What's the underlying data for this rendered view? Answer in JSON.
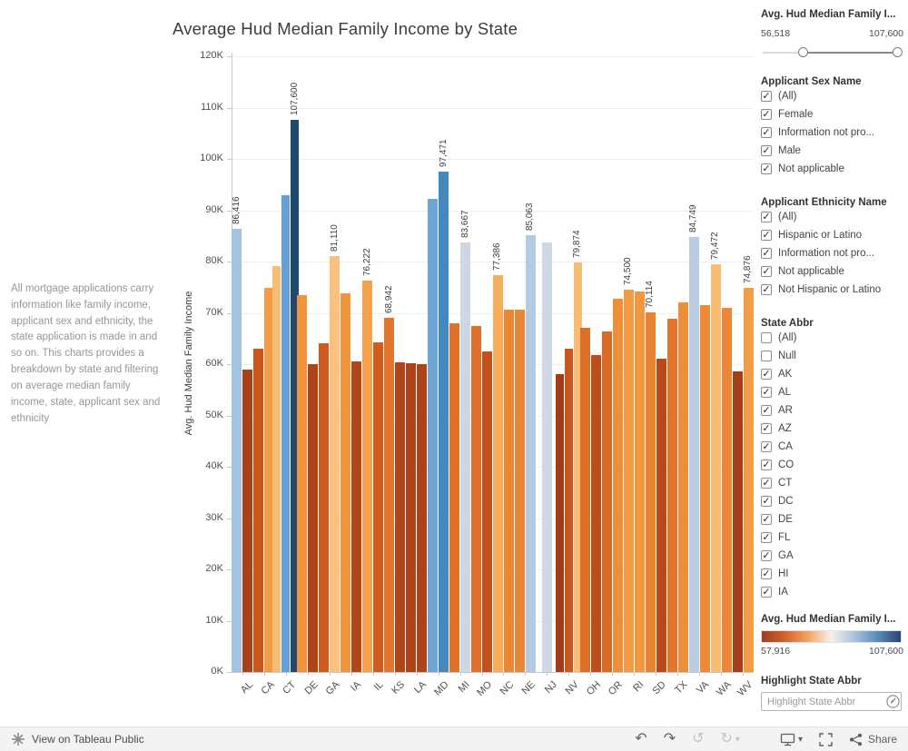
{
  "title": "Average Hud Median Family Income by State",
  "description": "All mortgage applications carry information like family income, applicant sex and ethnicity, the state application is made in and so on. This charts provides a breakdown by state and filtering on average median family income, state, applicant sex and ethnicity",
  "chart_data": {
    "type": "bar",
    "title": "Average Hud Median Family Income by State",
    "xlabel": "",
    "ylabel": "Avg. Hud Median Family Income",
    "ylim": [
      0,
      120000
    ],
    "grid": true,
    "ytick_labels": [
      "0K",
      "10K",
      "20K",
      "30K",
      "40K",
      "50K",
      "60K",
      "70K",
      "80K",
      "90K",
      "100K",
      "110K",
      "120K"
    ],
    "color_encoding": "bar color encodes value on diverging orange-blue scale 57,916 to 107,600",
    "groups": [
      {
        "state": "AL",
        "bars": [
          {
            "value": 86416,
            "label": "86,416",
            "color": "#a3c3e0"
          },
          {
            "value": 59000,
            "color": "#a84019"
          }
        ]
      },
      {
        "state": "CA",
        "bars": [
          {
            "value": 63000,
            "color": "#c9571c"
          },
          {
            "value": 74800,
            "color": "#f29c45"
          }
        ]
      },
      {
        "state": "CT",
        "bars": [
          {
            "value": 79200,
            "color": "#f8bd75"
          },
          {
            "value": 93000,
            "color": "#66a0d2"
          },
          {
            "value": 107600,
            "label": "107,600",
            "color": "#21486f"
          }
        ]
      },
      {
        "state": "DE",
        "bars": [
          {
            "value": 73500,
            "color": "#f0933c"
          },
          {
            "value": 60000,
            "color": "#ad4419"
          }
        ]
      },
      {
        "state": "GA",
        "bars": [
          {
            "value": 64000,
            "color": "#cd5c1e"
          },
          {
            "value": 81110,
            "label": "81,110",
            "color": "#f9c17d"
          }
        ]
      },
      {
        "state": "IA",
        "bars": [
          {
            "value": 73800,
            "color": "#f0953d"
          },
          {
            "value": 60500,
            "color": "#b0471b"
          }
        ]
      },
      {
        "state": "IL",
        "bars": [
          {
            "value": 76222,
            "label": "76,222",
            "color": "#f4a24d"
          },
          {
            "value": 64200,
            "color": "#cd5c1e"
          }
        ]
      },
      {
        "state": "KS",
        "bars": [
          {
            "value": 68942,
            "label": "68,942",
            "color": "#e1762c"
          },
          {
            "value": 60300,
            "color": "#af461a"
          }
        ]
      },
      {
        "state": "LA",
        "bars": [
          {
            "value": 60200,
            "color": "#ae451a"
          },
          {
            "value": 60000,
            "color": "#ad4419"
          }
        ]
      },
      {
        "state": "MD",
        "bars": [
          {
            "value": 92200,
            "color": "#6fa5d4"
          },
          {
            "value": 97471,
            "label": "97,471",
            "color": "#4289c0"
          }
        ]
      },
      {
        "state": "MI",
        "bars": [
          {
            "value": 67900,
            "color": "#de722a"
          },
          {
            "value": 83667,
            "label": "83,667",
            "color": "#ccd8e3"
          }
        ]
      },
      {
        "state": "MO",
        "bars": [
          {
            "value": 67400,
            "color": "#dd702a"
          },
          {
            "value": 62400,
            "color": "#c2511c"
          }
        ]
      },
      {
        "state": "NC",
        "bars": [
          {
            "value": 77386,
            "label": "77,386",
            "color": "#f6ad5c"
          },
          {
            "value": 70700,
            "color": "#ea8634"
          }
        ]
      },
      {
        "state": "NE",
        "bars": [
          {
            "value": 70600,
            "color": "#ea8634"
          },
          {
            "value": 85063,
            "label": "85,063",
            "color": "#b3cbe2"
          }
        ]
      },
      {
        "state": "NJ",
        "bars": [
          {
            "value": 83700,
            "color": "#ccd8e3"
          }
        ]
      },
      {
        "state": "NV",
        "bars": [
          {
            "value": 58000,
            "color": "#a33b18"
          },
          {
            "value": 63000,
            "color": "#c9571c"
          },
          {
            "value": 79874,
            "label": "79,874",
            "color": "#f8bd75"
          }
        ]
      },
      {
        "state": "OH",
        "bars": [
          {
            "value": 67000,
            "color": "#dc6e28"
          },
          {
            "value": 61800,
            "color": "#bd4d1b"
          }
        ]
      },
      {
        "state": "OR",
        "bars": [
          {
            "value": 66300,
            "color": "#d96a26"
          },
          {
            "value": 72800,
            "color": "#ee8e38"
          }
        ]
      },
      {
        "state": "RI",
        "bars": [
          {
            "value": 74500,
            "label": "74,500",
            "color": "#f29c45"
          },
          {
            "value": 74200,
            "color": "#f1983f"
          }
        ]
      },
      {
        "state": "SD",
        "bars": [
          {
            "value": 70114,
            "label": "70,114",
            "color": "#e98432"
          },
          {
            "value": 61000,
            "color": "#b9491a"
          }
        ]
      },
      {
        "state": "TX",
        "bars": [
          {
            "value": 68800,
            "color": "#e1762c"
          },
          {
            "value": 72000,
            "color": "#ee8e38"
          }
        ]
      },
      {
        "state": "VA",
        "bars": [
          {
            "value": 84749,
            "label": "84,749",
            "color": "#b8cde2"
          },
          {
            "value": 71500,
            "color": "#ec8a36"
          }
        ]
      },
      {
        "state": "WA",
        "bars": [
          {
            "value": 79472,
            "label": "79,472",
            "color": "#f8bd75"
          },
          {
            "value": 71000,
            "color": "#eb8735"
          }
        ]
      },
      {
        "state": "WV",
        "bars": [
          {
            "value": 58500,
            "color": "#a53d18"
          },
          {
            "value": 74876,
            "label": "74,876",
            "color": "#f29c45"
          }
        ]
      }
    ]
  },
  "filters": {
    "income_slider": {
      "title": "Avg. Hud Median Family I...",
      "min_label": "56,518",
      "max_label": "107,600",
      "handle_positions": [
        0.29,
        0.97
      ]
    },
    "applicant_sex": {
      "title": "Applicant Sex Name",
      "options": [
        {
          "label": "(All)",
          "checked": true
        },
        {
          "label": "Female",
          "checked": true
        },
        {
          "label": "Information not pro...",
          "checked": true
        },
        {
          "label": "Male",
          "checked": true
        },
        {
          "label": "Not applicable",
          "checked": true
        }
      ]
    },
    "applicant_ethnicity": {
      "title": "Applicant Ethnicity Name",
      "options": [
        {
          "label": "(All)",
          "checked": true
        },
        {
          "label": "Hispanic or Latino",
          "checked": true
        },
        {
          "label": "Information not pro...",
          "checked": true
        },
        {
          "label": "Not applicable",
          "checked": true
        },
        {
          "label": "Not Hispanic or Latino",
          "checked": true
        }
      ]
    },
    "state_abbr": {
      "title": "State Abbr",
      "options": [
        {
          "label": "(All)",
          "checked": false
        },
        {
          "label": "Null",
          "checked": false
        },
        {
          "label": "AK",
          "checked": true
        },
        {
          "label": "AL",
          "checked": true
        },
        {
          "label": "AR",
          "checked": true
        },
        {
          "label": "AZ",
          "checked": true
        },
        {
          "label": "CA",
          "checked": true
        },
        {
          "label": "CO",
          "checked": true
        },
        {
          "label": "CT",
          "checked": true
        },
        {
          "label": "DC",
          "checked": true
        },
        {
          "label": "DE",
          "checked": true
        },
        {
          "label": "FL",
          "checked": true
        },
        {
          "label": "GA",
          "checked": true
        },
        {
          "label": "HI",
          "checked": true
        },
        {
          "label": "IA",
          "checked": true
        }
      ]
    },
    "color_legend": {
      "title": "Avg. Hud Median Family I...",
      "min_label": "57,916",
      "max_label": "107,600",
      "gradient": [
        "#9e3d22",
        "#d3622a",
        "#f5a362",
        "#f4f1ec",
        "#a8c3da",
        "#5a8cb8",
        "#26456e"
      ]
    },
    "highlight": {
      "title": "Highlight State Abbr",
      "placeholder": "Highlight State Abbr"
    }
  },
  "icons": {
    "undo": "↶",
    "redo": "↷",
    "reset": "↺",
    "refresh": "↻",
    "caret": "▾"
  },
  "footer": {
    "view_label": "View on Tableau Public",
    "share_label": "Share"
  }
}
